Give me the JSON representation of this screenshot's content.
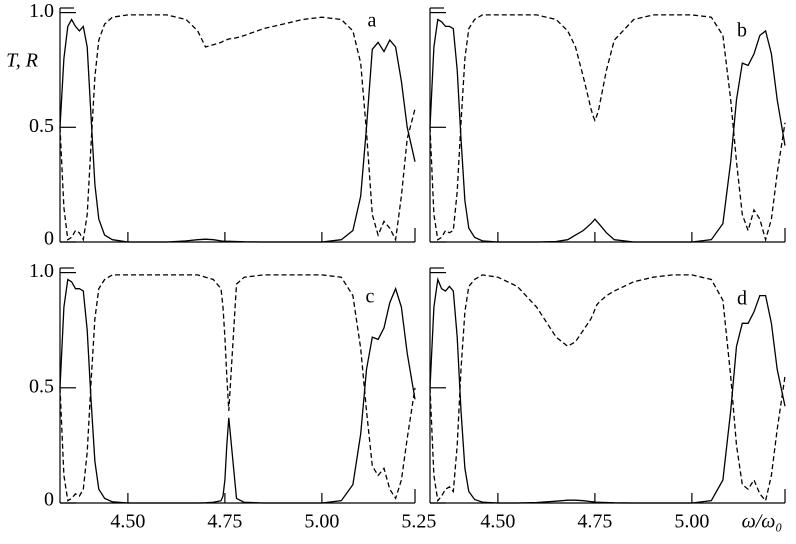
{
  "chart_data": [
    {
      "type": "line",
      "label": "a",
      "ylabel": "T, R",
      "x": [
        4.325,
        4.335,
        4.345,
        4.355,
        4.365,
        4.375,
        4.385,
        4.395,
        4.405,
        4.415,
        4.425,
        4.44,
        4.46,
        4.5,
        4.55,
        4.6,
        4.65,
        4.68,
        4.7,
        4.72,
        4.74,
        4.745,
        4.75,
        4.755,
        4.76,
        4.78,
        4.8,
        4.85,
        4.9,
        4.95,
        5.0,
        5.05,
        5.08,
        5.1,
        5.115,
        5.13,
        5.145,
        5.16,
        5.175,
        5.19,
        5.205,
        5.22,
        5.24
      ],
      "series": [
        {
          "color": "#000000",
          "line_style": "solid",
          "values": [
            0.5,
            0.8,
            0.94,
            0.97,
            0.94,
            0.92,
            0.94,
            0.85,
            0.55,
            0.25,
            0.1,
            0.03,
            0.01,
            0,
            0,
            0,
            0.005,
            0.01,
            0.012,
            0.01,
            0.005,
            0.004,
            0.003,
            0.003,
            0.003,
            0.002,
            0.001,
            0,
            0,
            0,
            0,
            0.01,
            0.05,
            0.2,
            0.5,
            0.84,
            0.87,
            0.83,
            0.88,
            0.85,
            0.7,
            0.5,
            0.35
          ]
        },
        {
          "color": "#000000",
          "line_style": "dashed",
          "values": [
            0.5,
            0.15,
            0.01,
            0.02,
            0.05,
            0.04,
            0.01,
            0.12,
            0.42,
            0.72,
            0.88,
            0.95,
            0.98,
            0.99,
            0.99,
            0.99,
            0.97,
            0.92,
            0.85,
            0.86,
            0.87,
            0.875,
            0.88,
            0.882,
            0.885,
            0.89,
            0.9,
            0.93,
            0.95,
            0.97,
            0.98,
            0.97,
            0.92,
            0.78,
            0.48,
            0.12,
            0.03,
            0.09,
            0.06,
            0.01,
            0.2,
            0.45,
            0.58
          ]
        }
      ],
      "xlim": [
        4.325,
        5.24
      ],
      "ylim": [
        0,
        1.02
      ],
      "xticks": [
        4.5,
        4.75,
        5
      ],
      "yticks": [
        0,
        0.5,
        {
          "value": 1,
          "label": "1.0"
        }
      ],
      "tick_labels": {
        "x": false,
        "y": true
      }
    },
    {
      "type": "line",
      "label": "b",
      "x": [
        4.325,
        4.335,
        4.345,
        4.355,
        4.365,
        4.375,
        4.385,
        4.395,
        4.405,
        4.415,
        4.425,
        4.44,
        4.46,
        4.5,
        4.55,
        4.6,
        4.65,
        4.68,
        4.7,
        4.72,
        4.74,
        4.745,
        4.75,
        4.755,
        4.76,
        4.78,
        4.8,
        4.85,
        4.9,
        4.95,
        5.0,
        5.05,
        5.08,
        5.1,
        5.115,
        5.13,
        5.145,
        5.16,
        5.175,
        5.19,
        5.205,
        5.22,
        5.24
      ],
      "series": [
        {
          "color": "#000000",
          "line_style": "solid",
          "values": [
            0.5,
            0.85,
            0.97,
            0.96,
            0.94,
            0.94,
            0.93,
            0.75,
            0.45,
            0.18,
            0.06,
            0.02,
            0.005,
            0,
            0,
            0,
            0.002,
            0.01,
            0.03,
            0.05,
            0.08,
            0.09,
            0.1,
            0.09,
            0.08,
            0.04,
            0.01,
            0,
            0,
            0,
            0,
            0.01,
            0.08,
            0.35,
            0.62,
            0.78,
            0.77,
            0.82,
            0.9,
            0.92,
            0.82,
            0.62,
            0.42
          ]
        },
        {
          "color": "#000000",
          "line_style": "dashed",
          "values": [
            0.5,
            0.12,
            0.01,
            0.02,
            0.05,
            0.04,
            0.05,
            0.22,
            0.52,
            0.8,
            0.93,
            0.97,
            0.99,
            0.99,
            0.99,
            0.99,
            0.97,
            0.92,
            0.85,
            0.72,
            0.58,
            0.55,
            0.53,
            0.55,
            0.58,
            0.75,
            0.88,
            0.97,
            0.99,
            0.99,
            0.99,
            0.98,
            0.9,
            0.62,
            0.35,
            0.12,
            0.05,
            0.14,
            0.1,
            0.01,
            0.1,
            0.3,
            0.52
          ]
        }
      ],
      "xlim": [
        4.325,
        5.24
      ],
      "ylim": [
        0,
        1.02
      ],
      "xticks": [
        4.5,
        4.75,
        5
      ],
      "yticks": [
        0,
        0.5,
        1
      ],
      "tick_labels": {
        "x": false,
        "y": false
      }
    },
    {
      "type": "line",
      "label": "c",
      "x": [
        4.325,
        4.335,
        4.345,
        4.355,
        4.365,
        4.375,
        4.385,
        4.395,
        4.405,
        4.415,
        4.425,
        4.44,
        4.46,
        4.5,
        4.55,
        4.6,
        4.65,
        4.68,
        4.7,
        4.72,
        4.74,
        4.745,
        4.75,
        4.755,
        4.76,
        4.78,
        4.8,
        4.85,
        4.9,
        4.95,
        5.0,
        5.05,
        5.08,
        5.1,
        5.115,
        5.13,
        5.145,
        5.16,
        5.175,
        5.19,
        5.205,
        5.22,
        5.24
      ],
      "series": [
        {
          "color": "#000000",
          "line_style": "solid",
          "values": [
            0.5,
            0.85,
            0.97,
            0.96,
            0.93,
            0.93,
            0.92,
            0.75,
            0.45,
            0.18,
            0.06,
            0.02,
            0.005,
            0,
            0,
            0,
            0,
            0,
            0.001,
            0.003,
            0.01,
            0.03,
            0.1,
            0.25,
            0.37,
            0.02,
            0.003,
            0,
            0,
            0,
            0,
            0.01,
            0.08,
            0.3,
            0.58,
            0.72,
            0.71,
            0.76,
            0.87,
            0.93,
            0.85,
            0.65,
            0.45
          ]
        },
        {
          "color": "#000000",
          "line_style": "dashed",
          "values": [
            0.5,
            0.12,
            0.01,
            0.02,
            0.04,
            0.03,
            0.06,
            0.22,
            0.52,
            0.8,
            0.93,
            0.97,
            0.99,
            0.99,
            0.99,
            0.99,
            0.99,
            0.99,
            0.98,
            0.97,
            0.93,
            0.85,
            0.72,
            0.55,
            0.4,
            0.95,
            0.98,
            0.99,
            0.99,
            0.99,
            0.99,
            0.98,
            0.9,
            0.67,
            0.4,
            0.16,
            0.12,
            0.15,
            0.06,
            0.02,
            0.1,
            0.28,
            0.5
          ]
        }
      ],
      "xlim": [
        4.325,
        5.24
      ],
      "ylim": [
        0,
        1.02
      ],
      "xticks": [
        {
          "value": 4.5,
          "label": "4.50"
        },
        4.75,
        {
          "value": 5,
          "label": "5.00"
        },
        5.25
      ],
      "yticks": [
        0,
        0.5,
        {
          "value": 1,
          "label": "1.0"
        }
      ],
      "tick_labels": {
        "x": true,
        "y": true
      }
    },
    {
      "type": "line",
      "label": "d",
      "xlabel": "ω/ω₀",
      "x": [
        4.325,
        4.335,
        4.345,
        4.355,
        4.365,
        4.375,
        4.385,
        4.395,
        4.405,
        4.415,
        4.425,
        4.44,
        4.46,
        4.5,
        4.55,
        4.6,
        4.65,
        4.68,
        4.7,
        4.72,
        4.74,
        4.745,
        4.75,
        4.755,
        4.76,
        4.78,
        4.8,
        4.85,
        4.9,
        4.95,
        5.0,
        5.05,
        5.08,
        5.1,
        5.115,
        5.13,
        5.145,
        5.16,
        5.175,
        5.19,
        5.205,
        5.22,
        5.24
      ],
      "series": [
        {
          "color": "#000000",
          "line_style": "solid",
          "values": [
            0.5,
            0.85,
            0.97,
            0.93,
            0.92,
            0.94,
            0.92,
            0.72,
            0.4,
            0.15,
            0.05,
            0.015,
            0.004,
            0,
            0,
            0.002,
            0.008,
            0.012,
            0.012,
            0.01,
            0.006,
            0.005,
            0.004,
            0.003,
            0.003,
            0.002,
            0.001,
            0,
            0,
            0,
            0,
            0.01,
            0.1,
            0.4,
            0.68,
            0.78,
            0.78,
            0.83,
            0.9,
            0.9,
            0.78,
            0.58,
            0.42
          ]
        },
        {
          "color": "#000000",
          "line_style": "dashed",
          "values": [
            0.5,
            0.12,
            0.01,
            0.03,
            0.06,
            0.07,
            0.05,
            0.25,
            0.58,
            0.83,
            0.94,
            0.97,
            0.99,
            0.98,
            0.94,
            0.85,
            0.72,
            0.68,
            0.7,
            0.75,
            0.8,
            0.82,
            0.84,
            0.86,
            0.87,
            0.9,
            0.92,
            0.96,
            0.98,
            0.99,
            0.99,
            0.97,
            0.88,
            0.55,
            0.25,
            0.08,
            0.06,
            0.1,
            0.04,
            0.01,
            0.12,
            0.32,
            0.55
          ]
        }
      ],
      "xlim": [
        4.325,
        5.24
      ],
      "ylim": [
        0,
        1.02
      ],
      "xticks": [
        {
          "value": 4.5,
          "label": "4.50"
        },
        4.75,
        {
          "value": 5,
          "label": "5.00"
        }
      ],
      "yticks": [
        0,
        0.5,
        1
      ],
      "tick_labels": {
        "x": true,
        "y": false
      }
    }
  ]
}
